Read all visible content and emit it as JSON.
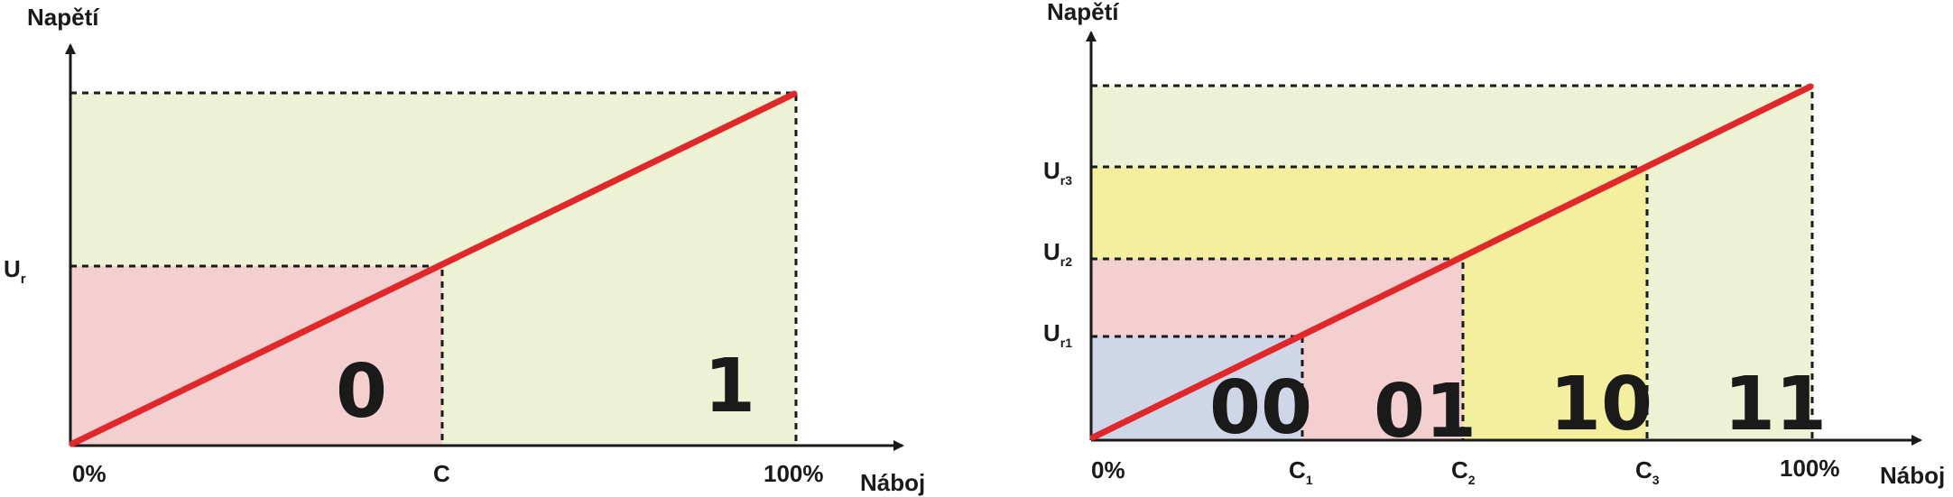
{
  "colors": {
    "green_zone": "#ecf2d3",
    "red_zone": "#f3cfd0",
    "blue_zone": "#cfd6e8",
    "yellow_zone": "#f3ef9e",
    "line": "#e0282a",
    "text": "#1a1a1a"
  },
  "left_diagram": {
    "y_axis_title": "Napětí",
    "x_axis_title": "Náboj",
    "y_level_label": {
      "main": "U",
      "sub": "r"
    },
    "x_ticks": {
      "start": "0%",
      "threshold": "C",
      "end": "100%"
    },
    "regions": [
      {
        "bits": "0"
      },
      {
        "bits": "1"
      }
    ]
  },
  "right_diagram": {
    "y_axis_title": "Napětí",
    "x_axis_title": "Náboj",
    "y_levels": [
      {
        "main": "U",
        "sub": "r3"
      },
      {
        "main": "U",
        "sub": "r2"
      },
      {
        "main": "U",
        "sub": "r1"
      }
    ],
    "x_ticks": {
      "start": "0%",
      "c1": {
        "main": "C",
        "sub": "1"
      },
      "c2": {
        "main": "C",
        "sub": "2"
      },
      "c3": {
        "main": "C",
        "sub": "3"
      },
      "end": "100%"
    },
    "regions": [
      {
        "bits": "00"
      },
      {
        "bits": "01"
      },
      {
        "bits": "10"
      },
      {
        "bits": "11"
      }
    ]
  }
}
